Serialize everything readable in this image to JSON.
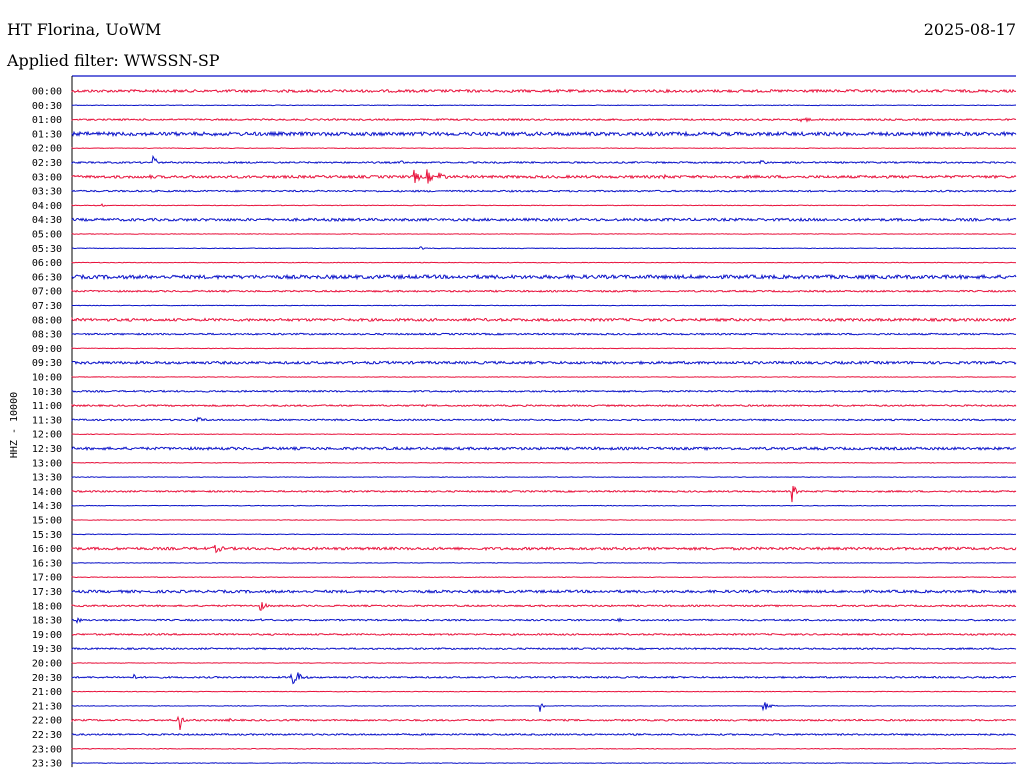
{
  "header": {
    "station": "HT Florina, UoWM",
    "date": "2025-08-17",
    "filter_label": "Applied filter: WWSSN-SP"
  },
  "chart_data": {
    "type": "line",
    "title": "HT Florina, UoWM",
    "channel_label": "HHZ - 10000",
    "row_labels": [
      "00:00",
      "00:30",
      "01:00",
      "01:30",
      "02:00",
      "02:30",
      "03:00",
      "03:30",
      "04:00",
      "04:30",
      "05:00",
      "05:30",
      "06:00",
      "06:30",
      "07:00",
      "07:30",
      "08:00",
      "08:30",
      "09:00",
      "09:30",
      "10:00",
      "10:30",
      "11:00",
      "11:30",
      "12:00",
      "12:30",
      "13:00",
      "13:30",
      "14:00",
      "14:30",
      "15:00",
      "15:30",
      "16:00",
      "16:30",
      "17:00",
      "17:30",
      "18:00",
      "18:30",
      "19:00",
      "19:30",
      "20:00",
      "20:30",
      "21:00",
      "21:30",
      "22:00",
      "22:30",
      "23:00",
      "23:30"
    ],
    "trace_colors": [
      "#e8123c",
      "#0a12c8"
    ],
    "noise_levels": [
      2,
      0,
      1,
      3,
      0,
      1,
      2,
      1,
      0,
      2,
      0,
      0,
      0,
      3,
      1,
      0,
      2,
      1,
      0,
      2,
      0,
      1,
      1,
      1,
      0,
      2,
      0,
      0,
      1,
      0,
      0,
      0,
      2,
      0,
      0,
      2,
      1,
      1,
      1,
      1,
      0,
      1,
      0,
      0,
      1,
      1,
      0,
      0
    ],
    "events": [
      {
        "row": 2,
        "minute": 23.2,
        "amp": 6,
        "dur": 0.45
      },
      {
        "row": 5,
        "minute": 2.6,
        "amp": 10,
        "dur": 0.2
      },
      {
        "row": 5,
        "minute": 10.5,
        "amp": 2,
        "dur": 0.4
      },
      {
        "row": 5,
        "minute": 21.9,
        "amp": 4,
        "dur": 0.4
      },
      {
        "row": 6,
        "minute": 2.5,
        "amp": 2,
        "dur": 0.5
      },
      {
        "row": 6,
        "minute": 10.9,
        "amp": 7,
        "dur": 0.5
      },
      {
        "row": 6,
        "minute": 11.3,
        "amp": 8,
        "dur": 0.4
      },
      {
        "row": 6,
        "minute": 11.7,
        "amp": 6,
        "dur": 0.5
      },
      {
        "row": 6,
        "minute": 18.8,
        "amp": 3,
        "dur": 0.8
      },
      {
        "row": 8,
        "minute": 1.0,
        "amp": 2,
        "dur": 0.2
      },
      {
        "row": 11,
        "minute": 11.1,
        "amp": 2,
        "dur": 0.3
      },
      {
        "row": 23,
        "minute": 4.0,
        "amp": 3,
        "dur": 0.8
      },
      {
        "row": 25,
        "minute": 27.3,
        "amp": 2,
        "dur": 0.5
      },
      {
        "row": 28,
        "minute": 22.9,
        "amp": 11,
        "dur": 0.25
      },
      {
        "row": 32,
        "minute": 4.5,
        "amp": 5,
        "dur": 0.9
      },
      {
        "row": 36,
        "minute": 6.0,
        "amp": 5,
        "dur": 0.5
      },
      {
        "row": 37,
        "minute": 0.2,
        "amp": 4,
        "dur": 0.2
      },
      {
        "row": 37,
        "minute": 6.0,
        "amp": 2,
        "dur": 0.2
      },
      {
        "row": 37,
        "minute": 17.4,
        "amp": 2,
        "dur": 0.2
      },
      {
        "row": 41,
        "minute": 2.0,
        "amp": 3,
        "dur": 0.3
      },
      {
        "row": 41,
        "minute": 7.0,
        "amp": 12,
        "dur": 0.6
      },
      {
        "row": 43,
        "minute": 14.9,
        "amp": 7,
        "dur": 0.25
      },
      {
        "row": 43,
        "minute": 22.0,
        "amp": 5,
        "dur": 0.5
      },
      {
        "row": 44,
        "minute": 3.4,
        "amp": 15,
        "dur": 0.25
      },
      {
        "row": 44,
        "minute": 5.0,
        "amp": 2,
        "dur": 0.3
      }
    ]
  }
}
